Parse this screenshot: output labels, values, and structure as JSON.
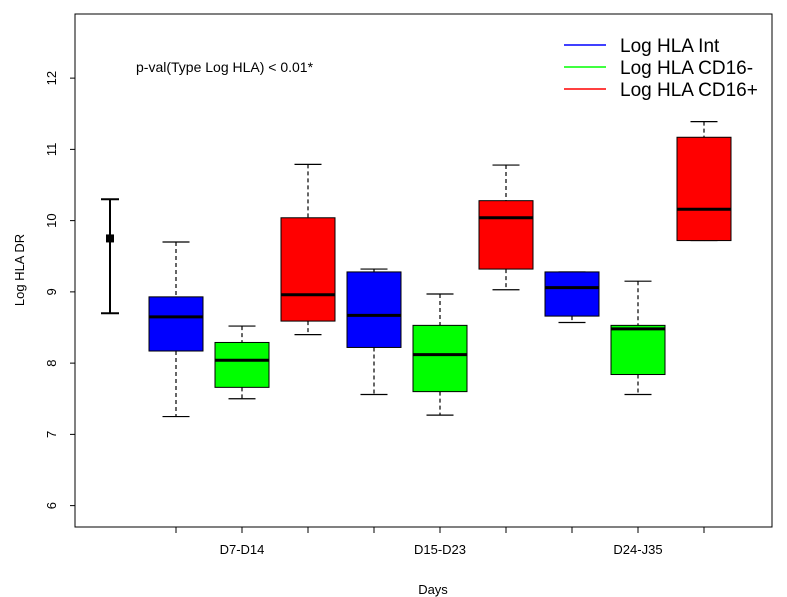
{
  "chart_data": {
    "type": "box",
    "xlabel": "Days",
    "ylabel": "Log HLA DR",
    "ylim": [
      5.7,
      12.9
    ],
    "yticks": [
      6,
      7,
      8,
      9,
      10,
      11,
      12
    ],
    "groups": [
      "D7-D14",
      "D15-D23",
      "D24-J35"
    ],
    "annotation": "p-val(Type Log HLA) < 0.01*",
    "legend_position": "top-right",
    "series": [
      {
        "name": "Log HLA Int",
        "color": "#0000ff"
      },
      {
        "name": "Log HLA CD16-",
        "color": "#00ff00"
      },
      {
        "name": "Log HLA CD16+",
        "color": "#ff0000"
      }
    ],
    "reference": {
      "mean": 9.75,
      "low": 8.7,
      "high": 10.3
    },
    "boxes": [
      {
        "group": "D7-D14",
        "series": "Log HLA Int",
        "min": 7.25,
        "q1": 8.17,
        "median": 8.65,
        "q3": 8.93,
        "max": 9.7
      },
      {
        "group": "D7-D14",
        "series": "Log HLA CD16-",
        "min": 7.5,
        "q1": 7.66,
        "median": 8.04,
        "q3": 8.29,
        "max": 8.52
      },
      {
        "group": "D7-D14",
        "series": "Log HLA CD16+",
        "min": 8.4,
        "q1": 8.59,
        "median": 8.96,
        "q3": 10.04,
        "max": 10.79
      },
      {
        "group": "D15-D23",
        "series": "Log HLA Int",
        "min": 7.56,
        "q1": 8.22,
        "median": 8.67,
        "q3": 9.28,
        "max": 9.32
      },
      {
        "group": "D15-D23",
        "series": "Log HLA CD16-",
        "min": 7.27,
        "q1": 7.6,
        "median": 8.12,
        "q3": 8.53,
        "max": 8.97
      },
      {
        "group": "D15-D23",
        "series": "Log HLA CD16+",
        "min": 9.03,
        "q1": 9.32,
        "median": 10.04,
        "q3": 10.28,
        "max": 10.78
      },
      {
        "group": "D24-J35",
        "series": "Log HLA Int",
        "min": 8.57,
        "q1": 8.66,
        "median": 9.06,
        "q3": 9.28,
        "max": 9.28
      },
      {
        "group": "D24-J35",
        "series": "Log HLA CD16-",
        "min": 7.56,
        "q1": 7.84,
        "median": 8.48,
        "q3": 8.53,
        "max": 9.15
      },
      {
        "group": "D24-J35",
        "series": "Log HLA CD16+",
        "min": 9.72,
        "q1": 9.72,
        "median": 10.16,
        "q3": 11.17,
        "max": 11.39
      }
    ]
  }
}
